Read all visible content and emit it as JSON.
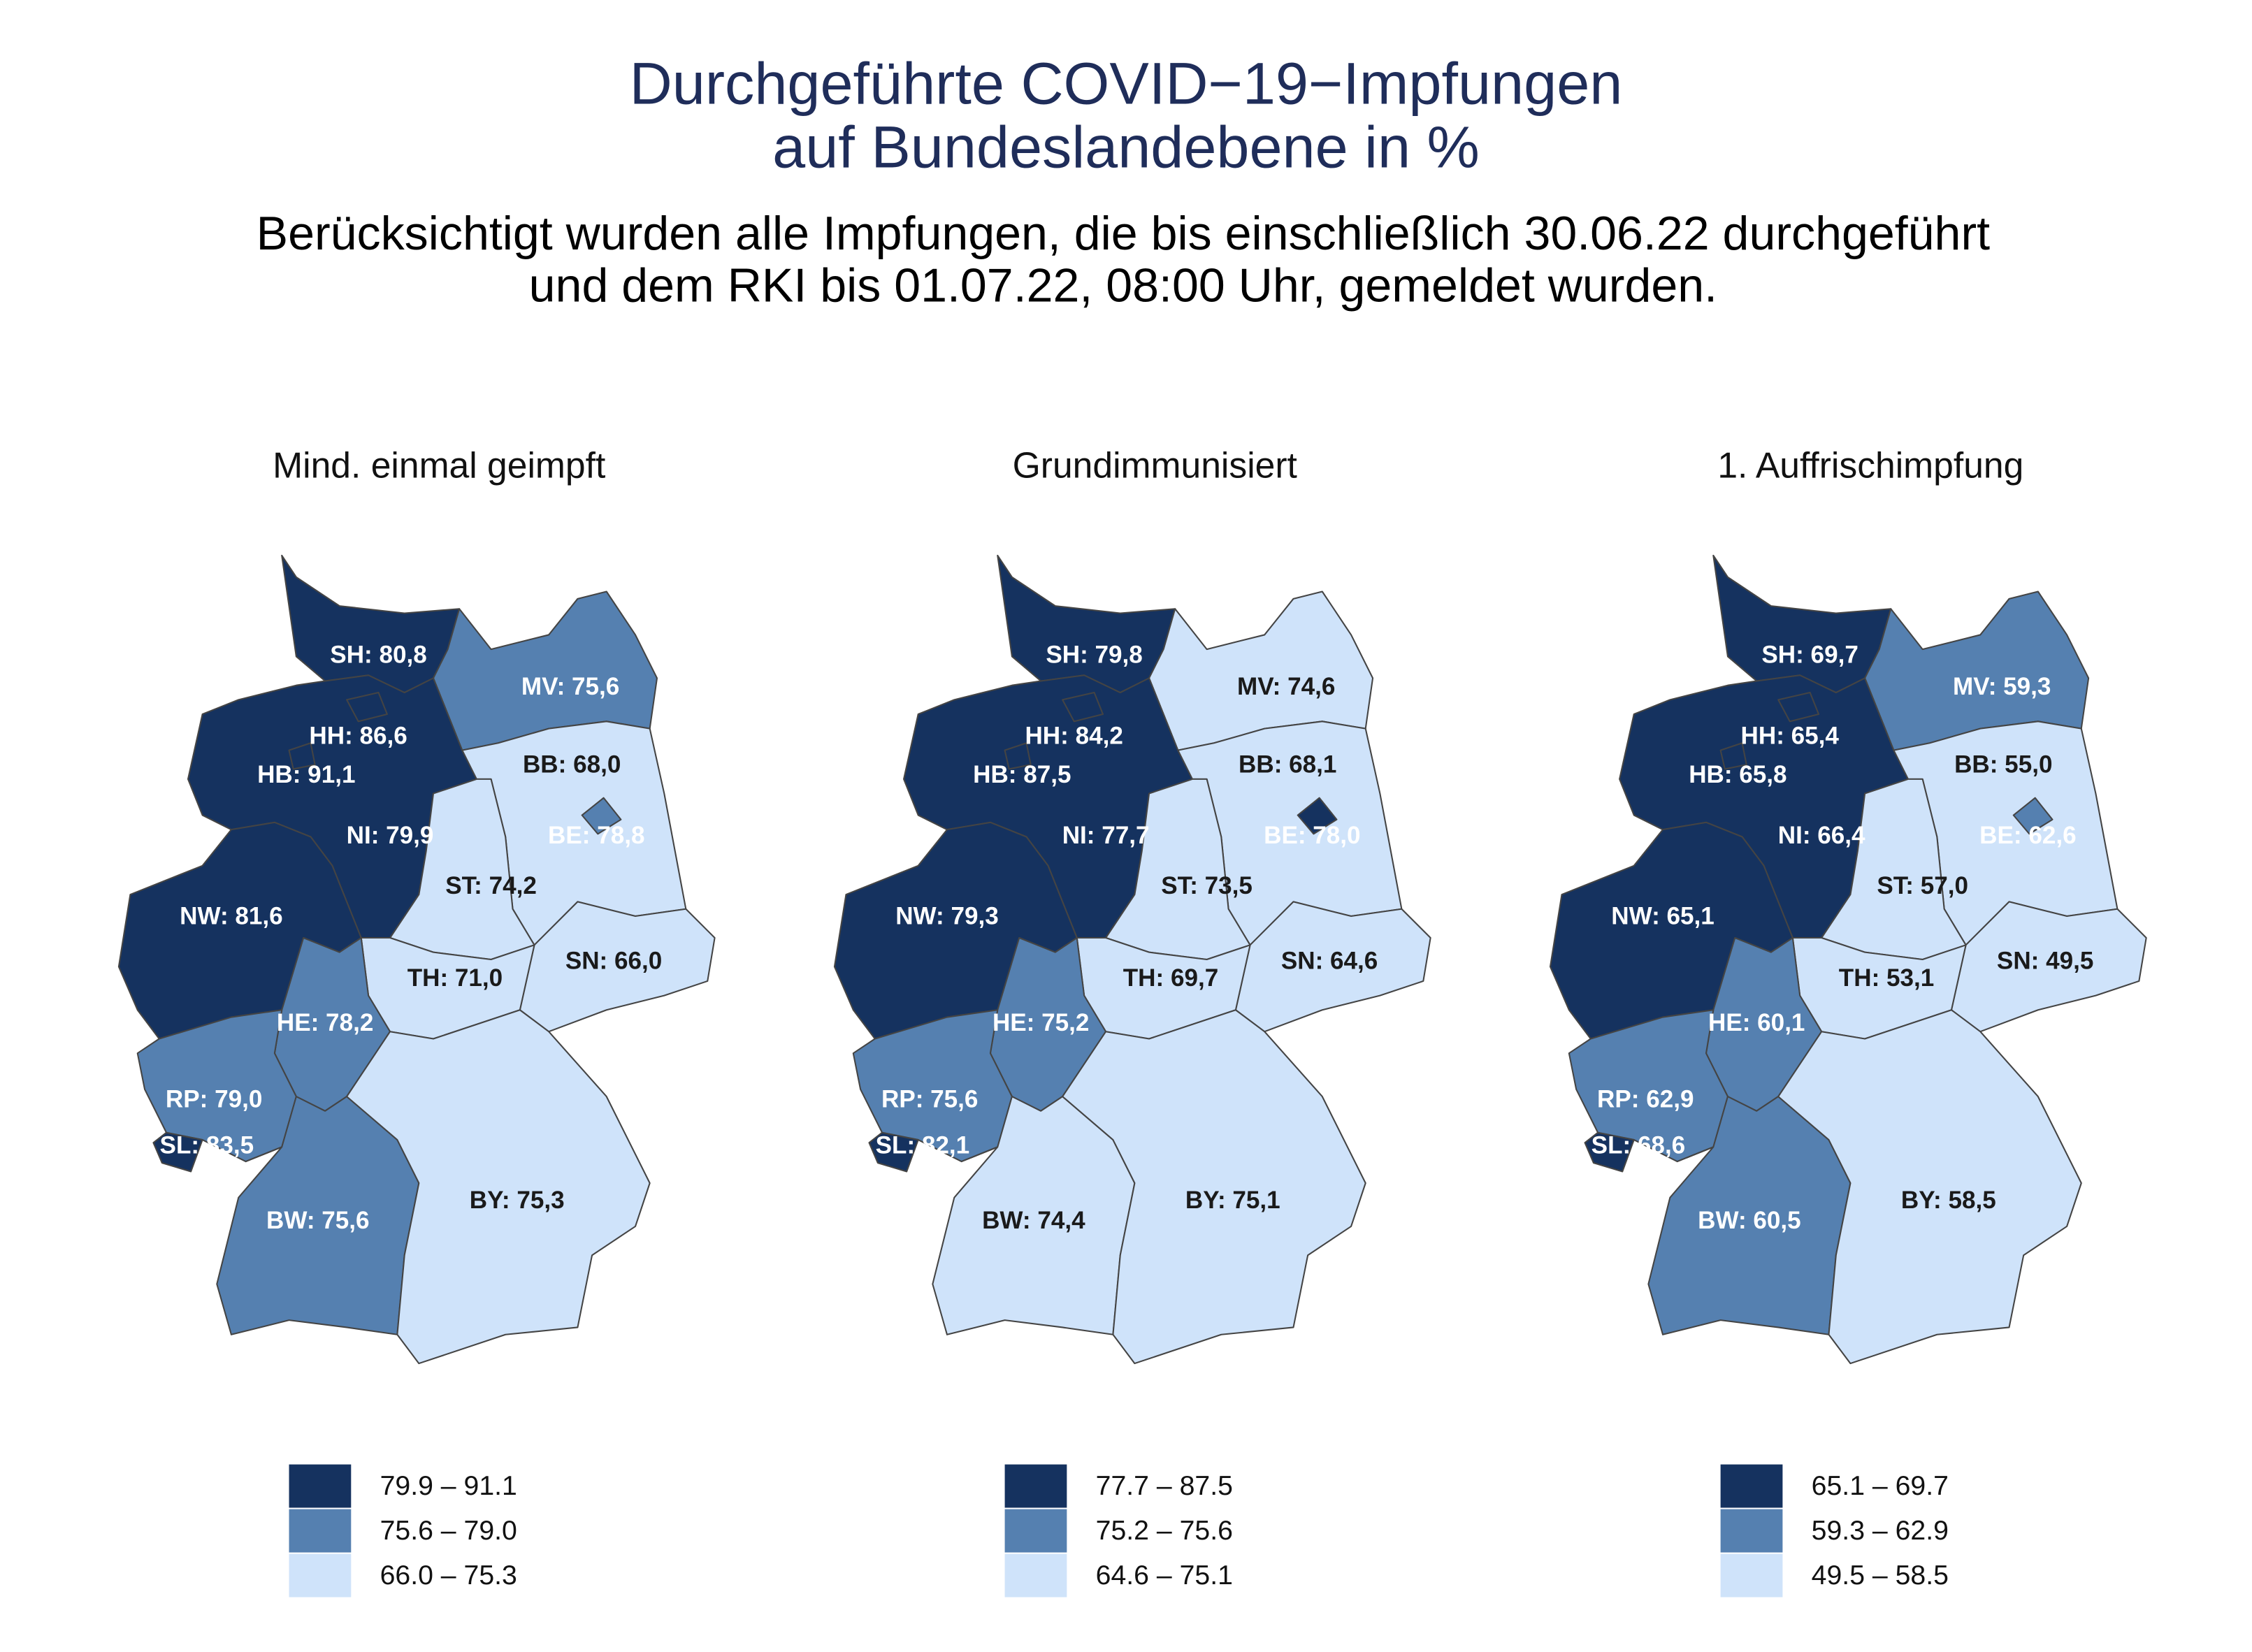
{
  "title": [
    "Durchgeführte COVID−19−Impfungen",
    "auf Bundeslandebene in %"
  ],
  "subtitle": [
    "Berücksichtigt wurden alle Impfungen, die bis einschließlich 30.06.22 durchgeführt",
    "und dem RKI bis 01.07.22, 08:00 Uhr, gemeldet wurden."
  ],
  "maps": [
    {
      "title": "Mind. einmal geimpft",
      "legend": [
        {
          "label": "79.9 – 91.1",
          "color": "#15325f"
        },
        {
          "label": "75.6 – 79.0",
          "color": "#5580b0"
        },
        {
          "label": "66.0 – 75.3",
          "color": "#cfe3fa"
        }
      ],
      "regions": [
        {
          "label": "SH: 80,8",
          "color": "#15325f"
        },
        {
          "label": "MV: 75,6",
          "color": "#5580b0"
        },
        {
          "label": "HH: 86,6",
          "color": "#15325f"
        },
        {
          "label": "HB: 91,1",
          "color": "#15325f"
        },
        {
          "label": "NI: 79,9",
          "color": "#15325f"
        },
        {
          "label": "BB: 68,0",
          "color": "#cfe3fa"
        },
        {
          "label": "BE: 78,8",
          "color": "#5580b0"
        },
        {
          "label": "ST: 74,2",
          "color": "#cfe3fa"
        },
        {
          "label": "NW: 81,6",
          "color": "#15325f"
        },
        {
          "label": "SN: 66,0",
          "color": "#cfe3fa"
        },
        {
          "label": "TH: 71,0",
          "color": "#cfe3fa"
        },
        {
          "label": "HE: 78,2",
          "color": "#5580b0"
        },
        {
          "label": "RP: 79,0",
          "color": "#5580b0"
        },
        {
          "label": "SL: 83,5",
          "color": "#15325f"
        },
        {
          "label": "BW: 75,6",
          "color": "#5580b0"
        },
        {
          "label": "BY: 75,3",
          "color": "#cfe3fa"
        }
      ]
    },
    {
      "title": "Grundimmunisiert",
      "legend": [
        {
          "label": "77.7 – 87.5",
          "color": "#15325f"
        },
        {
          "label": "75.2 – 75.6",
          "color": "#5580b0"
        },
        {
          "label": "64.6 – 75.1",
          "color": "#cfe3fa"
        }
      ],
      "regions": [
        {
          "label": "SH: 79,8",
          "color": "#15325f"
        },
        {
          "label": "MV: 74,6",
          "color": "#cfe3fa"
        },
        {
          "label": "HH: 84,2",
          "color": "#15325f"
        },
        {
          "label": "HB: 87,5",
          "color": "#15325f"
        },
        {
          "label": "NI: 77,7",
          "color": "#15325f"
        },
        {
          "label": "BB: 68,1",
          "color": "#cfe3fa"
        },
        {
          "label": "BE: 78,0",
          "color": "#15325f"
        },
        {
          "label": "ST: 73,5",
          "color": "#cfe3fa"
        },
        {
          "label": "NW: 79,3",
          "color": "#15325f"
        },
        {
          "label": "SN: 64,6",
          "color": "#cfe3fa"
        },
        {
          "label": "TH: 69,7",
          "color": "#cfe3fa"
        },
        {
          "label": "HE: 75,2",
          "color": "#5580b0"
        },
        {
          "label": "RP: 75,6",
          "color": "#5580b0"
        },
        {
          "label": "SL: 82,1",
          "color": "#15325f"
        },
        {
          "label": "BW: 74,4",
          "color": "#cfe3fa"
        },
        {
          "label": "BY: 75,1",
          "color": "#cfe3fa"
        }
      ]
    },
    {
      "title": "1. Auffrischimpfung",
      "legend": [
        {
          "label": "65.1 – 69.7",
          "color": "#15325f"
        },
        {
          "label": "59.3 – 62.9",
          "color": "#5580b0"
        },
        {
          "label": "49.5 – 58.5",
          "color": "#cfe3fa"
        }
      ],
      "regions": [
        {
          "label": "SH: 69,7",
          "color": "#15325f"
        },
        {
          "label": "MV: 59,3",
          "color": "#5580b0"
        },
        {
          "label": "HH: 65,4",
          "color": "#15325f"
        },
        {
          "label": "HB: 65,8",
          "color": "#15325f"
        },
        {
          "label": "NI: 66,4",
          "color": "#15325f"
        },
        {
          "label": "BB: 55,0",
          "color": "#cfe3fa"
        },
        {
          "label": "BE: 62,6",
          "color": "#5580b0"
        },
        {
          "label": "ST: 57,0",
          "color": "#cfe3fa"
        },
        {
          "label": "NW: 65,1",
          "color": "#15325f"
        },
        {
          "label": "SN: 49,5",
          "color": "#cfe3fa"
        },
        {
          "label": "TH: 53,1",
          "color": "#cfe3fa"
        },
        {
          "label": "HE: 60,1",
          "color": "#5580b0"
        },
        {
          "label": "RP: 62,9",
          "color": "#5580b0"
        },
        {
          "label": "SL: 68,6",
          "color": "#15325f"
        },
        {
          "label": "BW: 60,5",
          "color": "#5580b0"
        },
        {
          "label": "BY: 58,5",
          "color": "#cfe3fa"
        }
      ]
    }
  ]
}
